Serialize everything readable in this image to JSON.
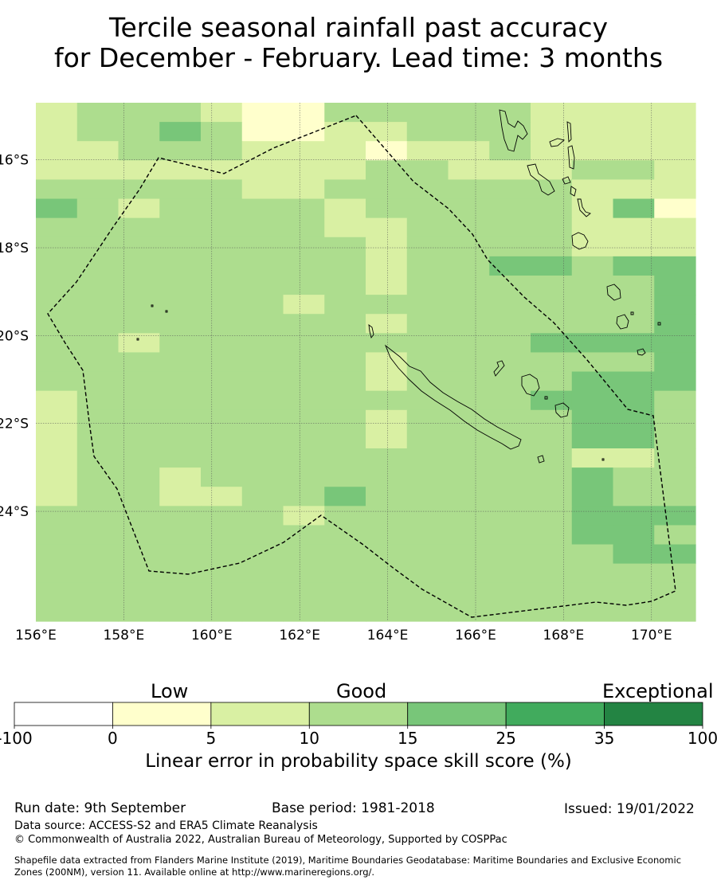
{
  "title": {
    "line1": "Tercile seasonal rainfall past accuracy",
    "line2": "for December - February. Lead time: 3 months"
  },
  "map": {
    "lat_labels": [
      "16°S",
      "18°S",
      "20°S",
      "22°S",
      "24°S"
    ],
    "lon_labels": [
      "156°E",
      "158°E",
      "160°E",
      "162°E",
      "164°E",
      "166°E",
      "168°E",
      "170°E"
    ],
    "lon_range": [
      156,
      171
    ],
    "lat_range": [
      -26.5,
      -14.7
    ],
    "grid": true,
    "skill_grid_rows_top_to_bottom": [
      "2333211333332222",
      "2334311223332222",
      "2233322212232222",
      "2222222233222332",
      "3333322333333222",
      "4323333233333241",
      "3333333223333222",
      "3333333323333222",
      "3333333323344344",
      "3333333323333334",
      "3333332333333334",
      "3333333323333334",
      "3323333333334444",
      "3333333323333334",
      "3333333323333444",
      "2333333333334443",
      "2333333323333443",
      "2333333323333443",
      "2333333333333223",
      "2332333333333433",
      "2332233433333433",
      "3333332333333444",
      "3333333333333443",
      "3333333333333344",
      "3333333333333333",
      "3333333333333333",
      "3333333333333333"
    ]
  },
  "legend": {
    "category_labels": [
      "Low",
      "Good",
      "Exceptional"
    ],
    "bins": [
      {
        "from": -100,
        "to": 0,
        "color": "#ffffff"
      },
      {
        "from": 0,
        "to": 5,
        "color": "#ffffcc"
      },
      {
        "from": 5,
        "to": 10,
        "color": "#d9f0a3"
      },
      {
        "from": 10,
        "to": 15,
        "color": "#addd8e"
      },
      {
        "from": 15,
        "to": 25,
        "color": "#78c679"
      },
      {
        "from": 25,
        "to": 35,
        "color": "#41ab5d"
      },
      {
        "from": 35,
        "to": 100,
        "color": "#238443"
      }
    ],
    "tick_labels": [
      "-100",
      "0",
      "5",
      "10",
      "15",
      "25",
      "35",
      "100"
    ],
    "axis_label": "Linear error in probability space skill score (%)"
  },
  "footer": {
    "run_date": "Run date: 9th September",
    "base_period": "Base period: 1981-2018",
    "issued": "Issued: 19/01/2022",
    "data_source": "Data source: ACCESS-S2 and ERA5 Climate Reanalysis",
    "copyright": "© Commonwealth of Australia 2022, Australian Bureau of Meteorology, Supported by COSPPac",
    "shapefile_line1": "Shapefile data extracted from Flanders Marine Institute (2019), Maritime Boundaries Geodatabase: Maritime Boundaries and Exclusive Economic",
    "shapefile_line2": "Zones (200NM), version 11. Available online at http://www.marineregions.org/."
  }
}
